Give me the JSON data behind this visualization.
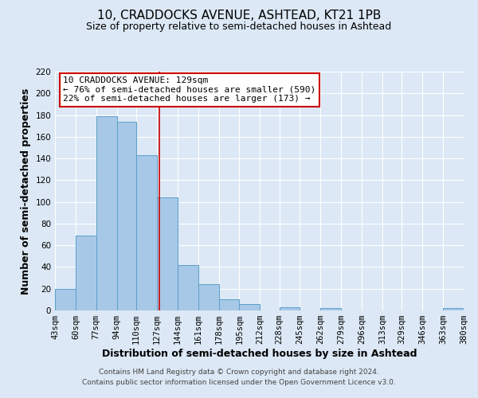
{
  "title": "10, CRADDOCKS AVENUE, ASHTEAD, KT21 1PB",
  "subtitle": "Size of property relative to semi-detached houses in Ashtead",
  "xlabel": "Distribution of semi-detached houses by size in Ashtead",
  "ylabel": "Number of semi-detached properties",
  "bin_edges": [
    43,
    60,
    77,
    94,
    110,
    127,
    144,
    161,
    178,
    195,
    212,
    228,
    245,
    262,
    279,
    296,
    313,
    329,
    346,
    363,
    380
  ],
  "counts": [
    20,
    69,
    179,
    174,
    143,
    104,
    42,
    24,
    10,
    6,
    0,
    3,
    0,
    2,
    0,
    0,
    0,
    0,
    0,
    2
  ],
  "bar_color": "#a8c8e8",
  "bar_edge_color": "#5a9fc8",
  "property_size": 129,
  "vline_color": "#cc0000",
  "annotation_line1": "10 CRADDOCKS AVENUE: 129sqm",
  "annotation_line2": "← 76% of semi-detached houses are smaller (590)",
  "annotation_line3": "22% of semi-detached houses are larger (173) →",
  "annotation_box_color": "#ffffff",
  "annotation_box_edge_color": "#cc0000",
  "ylim": [
    0,
    220
  ],
  "yticks": [
    0,
    20,
    40,
    60,
    80,
    100,
    120,
    140,
    160,
    180,
    200,
    220
  ],
  "footer_line1": "Contains HM Land Registry data © Crown copyright and database right 2024.",
  "footer_line2": "Contains public sector information licensed under the Open Government Licence v3.0.",
  "bg_color": "#dce8f5",
  "grid_color": "#ffffff",
  "title_fontsize": 11,
  "subtitle_fontsize": 9,
  "axis_label_fontsize": 9,
  "tick_label_size": 7.5,
  "annotation_fontsize": 8,
  "footer_fontsize": 6.5
}
